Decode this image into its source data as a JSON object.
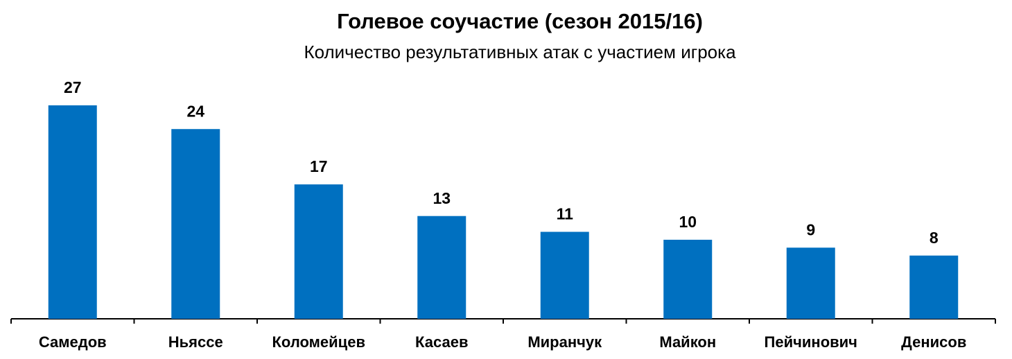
{
  "chart_data": {
    "type": "bar",
    "title": "Голевое соучастие (сезон 2015/16)",
    "subtitle": "Количество результативных атак с участием игрока",
    "categories": [
      "Самедов",
      "Ньяссе",
      "Коломейцев",
      "Касаев",
      "Миранчук",
      "Майкон",
      "Пейчинович",
      "Денисов"
    ],
    "values": [
      27,
      24,
      17,
      13,
      11,
      10,
      9,
      8
    ],
    "color": "#0070c0"
  }
}
